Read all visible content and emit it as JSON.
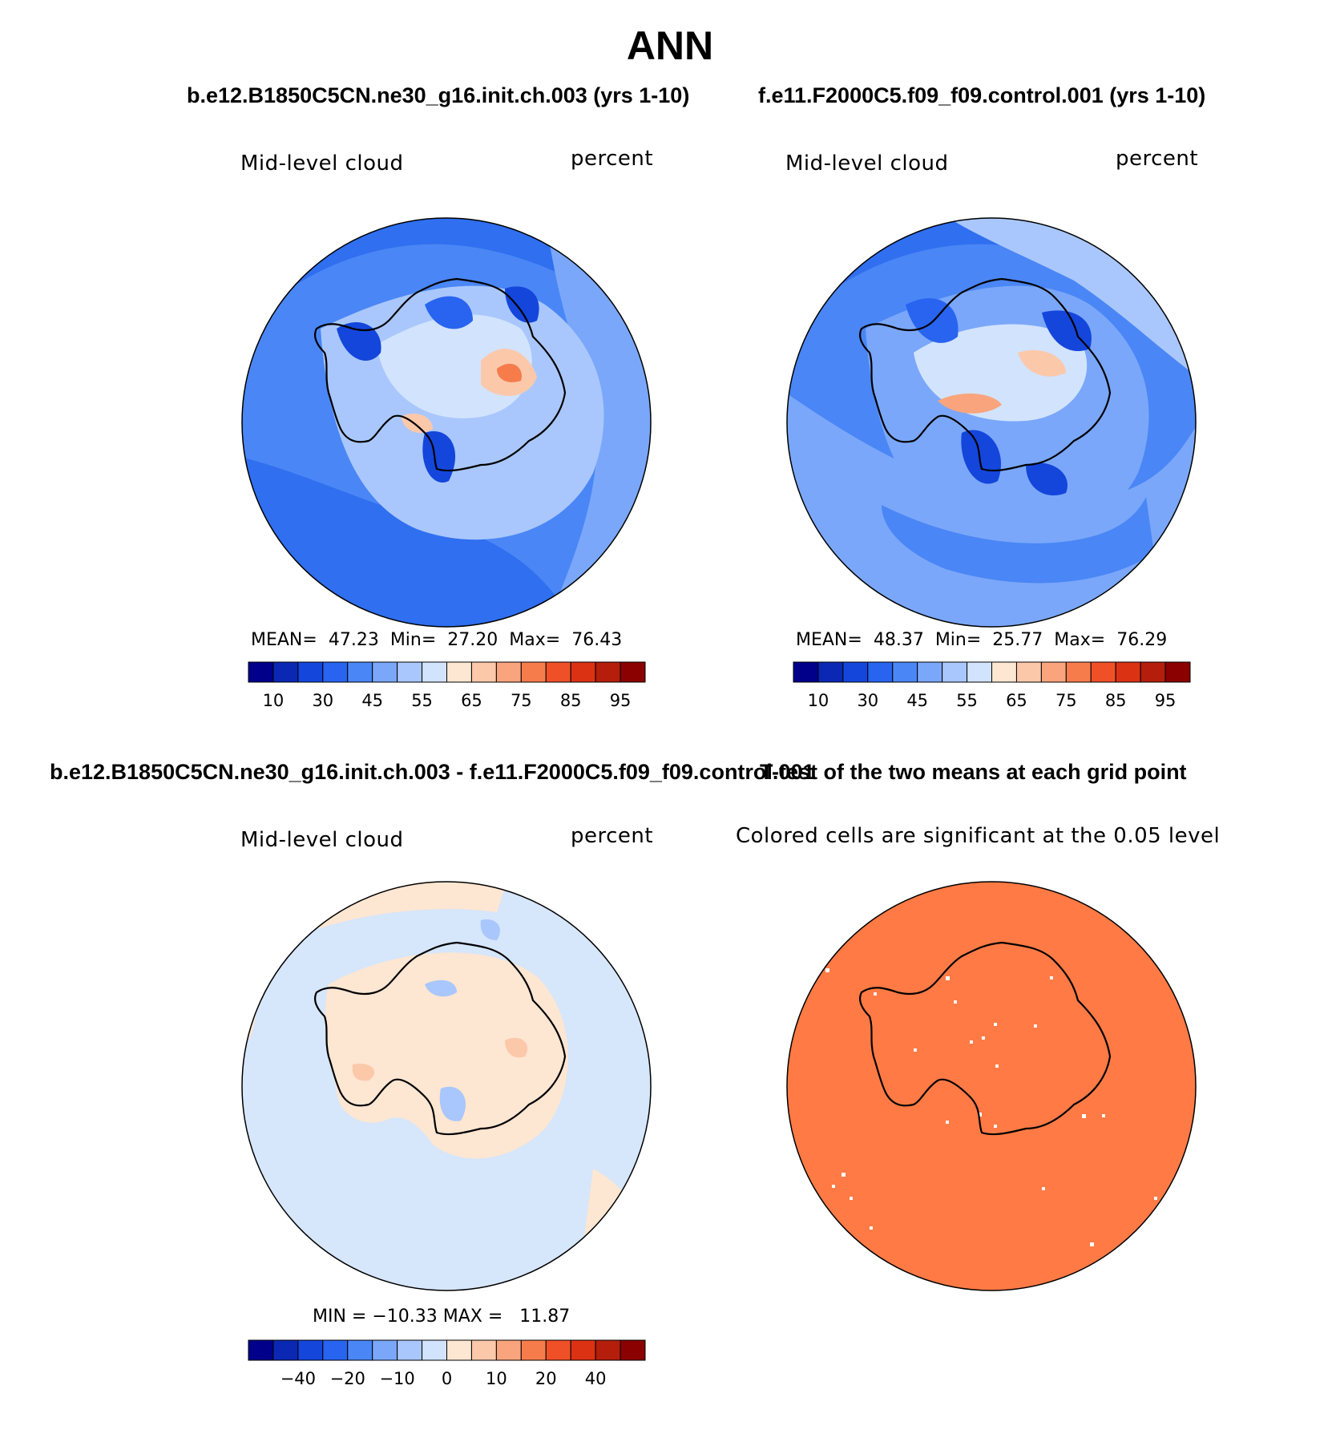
{
  "title": "ANN",
  "panels": [
    {
      "id": "test",
      "case_title": "b.e12.B1850C5CN.ne30_g16.init.ch.003 (yrs 1-10)",
      "variable": "Mid-level cloud",
      "units": "percent",
      "stats": {
        "mean_label": "MEAN=",
        "mean": "47.23",
        "min_label": "Min=",
        "min": "27.20",
        "max_label": "Max=",
        "max": "76.43"
      },
      "colorbar": {
        "colors": [
          "#00008b",
          "#0a28b4",
          "#1446dc",
          "#2864f0",
          "#4a86f5",
          "#7aa7fa",
          "#a9c7fc",
          "#d2e3fd",
          "#fde6d2",
          "#fcc8aa",
          "#f9a47c",
          "#f67c4c",
          "#f05028",
          "#dc3214",
          "#b41e0a",
          "#8b0000"
        ],
        "tick_labels": [
          "10",
          "30",
          "45",
          "55",
          "65",
          "75",
          "85",
          "95"
        ]
      }
    },
    {
      "id": "control",
      "case_title": "f.e11.F2000C5.f09_f09.control.001 (yrs 1-10)",
      "variable": "Mid-level cloud",
      "units": "percent",
      "stats": {
        "mean_label": "MEAN=",
        "mean": "48.37",
        "min_label": "Min=",
        "min": "25.77",
        "max_label": "Max=",
        "max": "76.29"
      },
      "colorbar": {
        "colors": [
          "#00008b",
          "#0a28b4",
          "#1446dc",
          "#2864f0",
          "#4a86f5",
          "#7aa7fa",
          "#a9c7fc",
          "#d2e3fd",
          "#fde6d2",
          "#fcc8aa",
          "#f9a47c",
          "#f67c4c",
          "#f05028",
          "#dc3214",
          "#b41e0a",
          "#8b0000"
        ],
        "tick_labels": [
          "10",
          "30",
          "45",
          "55",
          "65",
          "75",
          "85",
          "95"
        ]
      }
    },
    {
      "id": "difference",
      "case_title": "b.e12.B1850C5CN.ne30_g16.init.ch.003 - f.e11.F2000C5.f09_f09.control.001",
      "variable": "Mid-level cloud",
      "units": "percent",
      "stats_text": "MIN = −10.33 MAX =   11.87",
      "colorbar": {
        "colors": [
          "#00008b",
          "#0a28b4",
          "#1446dc",
          "#2864f0",
          "#4a86f5",
          "#7aa7fa",
          "#a9c7fc",
          "#d2e3fd",
          "#fde6d2",
          "#fcc8aa",
          "#f9a47c",
          "#f67c4c",
          "#f05028",
          "#dc3214",
          "#b41e0a",
          "#8b0000"
        ],
        "tick_labels": [
          "−40",
          "−20",
          "−10",
          "0",
          "10",
          "20",
          "40"
        ]
      }
    },
    {
      "id": "ttest",
      "case_title": "T-test of the two means at each grid point",
      "subtitle": "Colored cells are significant at the 0.05 level"
    }
  ],
  "colors": {
    "ocean_test": "#4a86f5",
    "ocean_control": "#4a86f5",
    "diff_bg": "#d6e6fb",
    "diff_pos": "#fde6d2",
    "ttest_fill": "#ff7a45",
    "coast": "#000000"
  }
}
